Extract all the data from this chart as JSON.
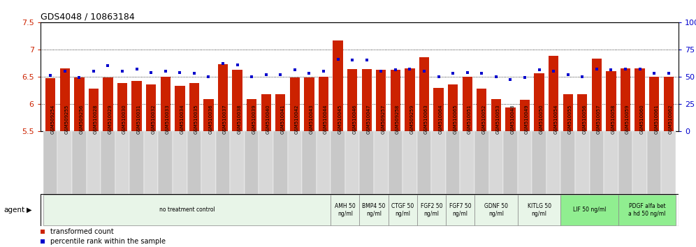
{
  "title": "GDS4048 / 10863184",
  "ylim": [
    5.5,
    7.5
  ],
  "yticks": [
    5.5,
    6.0,
    6.5,
    7.0,
    7.5
  ],
  "ytick_labels": [
    "5.5",
    "6",
    "6.5",
    "7",
    "7.5"
  ],
  "y2lim": [
    0,
    100
  ],
  "y2ticks": [
    0,
    25,
    50,
    75,
    100
  ],
  "y2tick_labels": [
    "0",
    "25",
    "50",
    "75",
    "100%"
  ],
  "bar_color": "#cc2200",
  "dot_color": "#0000cc",
  "samples": [
    "GSM509254",
    "GSM509255",
    "GSM509256",
    "GSM510028",
    "GSM510029",
    "GSM510030",
    "GSM510031",
    "GSM510032",
    "GSM510033",
    "GSM510034",
    "GSM510035",
    "GSM510036",
    "GSM510037",
    "GSM510038",
    "GSM510039",
    "GSM510040",
    "GSM510041",
    "GSM510042",
    "GSM510043",
    "GSM510044",
    "GSM510045",
    "GSM510046",
    "GSM510047",
    "GSM509257",
    "GSM509258",
    "GSM509259",
    "GSM510063",
    "GSM510064",
    "GSM510065",
    "GSM510051",
    "GSM510052",
    "GSM510053",
    "GSM510048",
    "GSM510049",
    "GSM510050",
    "GSM510054",
    "GSM510055",
    "GSM510056",
    "GSM510057",
    "GSM510058",
    "GSM510059",
    "GSM510060",
    "GSM510061",
    "GSM510062"
  ],
  "bar_values": [
    6.47,
    6.65,
    6.48,
    6.28,
    6.49,
    6.38,
    6.42,
    6.35,
    6.5,
    6.33,
    6.38,
    6.08,
    6.73,
    6.62,
    6.08,
    6.18,
    6.17,
    6.49,
    6.48,
    6.5,
    7.17,
    6.64,
    6.64,
    6.62,
    6.63,
    6.65,
    6.85,
    6.29,
    6.35,
    6.5,
    6.28,
    6.08,
    5.93,
    6.07,
    6.56,
    6.88,
    6.18,
    6.17,
    6.83,
    6.6,
    6.65,
    6.65,
    6.5,
    6.5
  ],
  "dot_values": [
    51,
    55,
    49,
    55,
    60,
    55,
    57,
    54,
    55,
    54,
    53,
    50,
    62,
    61,
    50,
    52,
    52,
    56,
    53,
    55,
    66,
    65,
    65,
    55,
    56,
    57,
    55,
    50,
    53,
    54,
    53,
    50,
    47,
    49,
    56,
    55,
    52,
    50,
    57,
    56,
    57,
    57,
    53,
    53
  ],
  "agent_groups": [
    {
      "label": "no treatment control",
      "start": 0,
      "end": 20,
      "color": "#e8f5e8"
    },
    {
      "label": "AMH 50\nng/ml",
      "start": 20,
      "end": 22,
      "color": "#e8f5e8"
    },
    {
      "label": "BMP4 50\nng/ml",
      "start": 22,
      "end": 24,
      "color": "#e8f5e8"
    },
    {
      "label": "CTGF 50\nng/ml",
      "start": 24,
      "end": 26,
      "color": "#e8f5e8"
    },
    {
      "label": "FGF2 50\nng/ml",
      "start": 26,
      "end": 28,
      "color": "#e8f5e8"
    },
    {
      "label": "FGF7 50\nng/ml",
      "start": 28,
      "end": 30,
      "color": "#e8f5e8"
    },
    {
      "label": "GDNF 50\nng/ml",
      "start": 30,
      "end": 33,
      "color": "#e8f5e8"
    },
    {
      "label": "KITLG 50\nng/ml",
      "start": 33,
      "end": 36,
      "color": "#e8f5e8"
    },
    {
      "label": "LIF 50 ng/ml",
      "start": 36,
      "end": 40,
      "color": "#90ee90"
    },
    {
      "label": "PDGF alfa bet\na hd 50 ng/ml",
      "start": 40,
      "end": 44,
      "color": "#90ee90"
    }
  ],
  "legend_bar_label": "transformed count",
  "legend_dot_label": "percentile rank within the sample",
  "agent_label": "agent",
  "xtick_bg": "#d0d0d0",
  "dotted_lines": [
    6.0,
    6.5,
    7.0
  ],
  "grid_color": "#000000"
}
